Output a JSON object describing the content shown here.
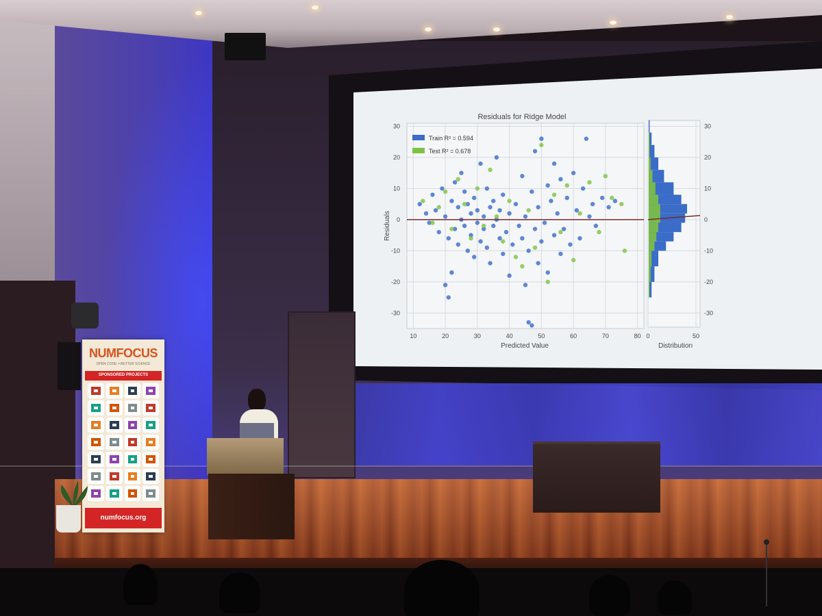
{
  "slide": {
    "title": "Residuals for Ridge Model",
    "legend": {
      "train_label": "Train R² = 0.594",
      "test_label": "Test R² = 0.678"
    },
    "xlabel": "Predicted Value",
    "ylabel": "Residuals",
    "hist_xlabel": "Distribution",
    "x_ticks": [
      "10",
      "20",
      "30",
      "40",
      "50",
      "60",
      "70",
      "80"
    ],
    "y_ticks": [
      "30",
      "20",
      "10",
      "0",
      "-10",
      "-20",
      "-30"
    ],
    "hist_x_ticks": [
      "0",
      "50"
    ],
    "colors": {
      "train": "#3a6cc8",
      "test": "#7fc241",
      "zero_line": "#7a2a2a"
    }
  },
  "chart_data": {
    "type": "scatter",
    "title": "Residuals for Ridge Model",
    "xlabel": "Predicted Value",
    "ylabel": "Residuals",
    "xlim": [
      8,
      82
    ],
    "ylim": [
      -35,
      31
    ],
    "grid": true,
    "legend_position": "top-left",
    "series": [
      {
        "name": "Train R² = 0.594",
        "color": "#3a6cc8",
        "points": [
          [
            12,
            5
          ],
          [
            14,
            2
          ],
          [
            15,
            -1
          ],
          [
            16,
            8
          ],
          [
            17,
            3
          ],
          [
            18,
            -4
          ],
          [
            19,
            10
          ],
          [
            20,
            1
          ],
          [
            21,
            -6
          ],
          [
            22,
            6
          ],
          [
            22,
            -17
          ],
          [
            23,
            12
          ],
          [
            23,
            -3
          ],
          [
            24,
            4
          ],
          [
            24,
            -8
          ],
          [
            25,
            15
          ],
          [
            25,
            0
          ],
          [
            26,
            -2
          ],
          [
            26,
            9
          ],
          [
            27,
            -10
          ],
          [
            27,
            5
          ],
          [
            28,
            2
          ],
          [
            28,
            -5
          ],
          [
            29,
            7
          ],
          [
            29,
            -12
          ],
          [
            30,
            -1
          ],
          [
            30,
            3
          ],
          [
            31,
            18
          ],
          [
            31,
            -7
          ],
          [
            32,
            1
          ],
          [
            32,
            -3
          ],
          [
            33,
            10
          ],
          [
            33,
            -9
          ],
          [
            34,
            4
          ],
          [
            34,
            -14
          ],
          [
            35,
            -2
          ],
          [
            35,
            6
          ],
          [
            36,
            0
          ],
          [
            36,
            20
          ],
          [
            37,
            -6
          ],
          [
            37,
            3
          ],
          [
            38,
            -11
          ],
          [
            38,
            8
          ],
          [
            39,
            -4
          ],
          [
            40,
            2
          ],
          [
            40,
            -18
          ],
          [
            41,
            -8
          ],
          [
            42,
            5
          ],
          [
            43,
            -2
          ],
          [
            44,
            14
          ],
          [
            44,
            -6
          ],
          [
            45,
            -21
          ],
          [
            45,
            1
          ],
          [
            46,
            -10
          ],
          [
            47,
            9
          ],
          [
            48,
            -3
          ],
          [
            48,
            22
          ],
          [
            49,
            -14
          ],
          [
            49,
            4
          ],
          [
            50,
            26
          ],
          [
            50,
            -7
          ],
          [
            51,
            -1
          ],
          [
            52,
            11
          ],
          [
            52,
            -17
          ],
          [
            53,
            6
          ],
          [
            54,
            -5
          ],
          [
            54,
            18
          ],
          [
            55,
            2
          ],
          [
            56,
            -11
          ],
          [
            56,
            13
          ],
          [
            57,
            -3
          ],
          [
            58,
            7
          ],
          [
            59,
            -8
          ],
          [
            60,
            15
          ],
          [
            61,
            3
          ],
          [
            62,
            -6
          ],
          [
            63,
            10
          ],
          [
            64,
            26
          ],
          [
            65,
            1
          ],
          [
            66,
            5
          ],
          [
            67,
            -2
          ],
          [
            69,
            7
          ],
          [
            71,
            4
          ],
          [
            73,
            6
          ],
          [
            46,
            -33
          ],
          [
            47,
            -34
          ],
          [
            21,
            -25
          ],
          [
            20,
            -21
          ]
        ]
      },
      {
        "name": "Test R² = 0.678",
        "color": "#7fc241",
        "points": [
          [
            13,
            6
          ],
          [
            16,
            -1
          ],
          [
            18,
            4
          ],
          [
            20,
            9
          ],
          [
            22,
            -3
          ],
          [
            24,
            13
          ],
          [
            26,
            5
          ],
          [
            28,
            -6
          ],
          [
            30,
            10
          ],
          [
            32,
            -2
          ],
          [
            34,
            16
          ],
          [
            36,
            1
          ],
          [
            38,
            -7
          ],
          [
            40,
            6
          ],
          [
            42,
            -12
          ],
          [
            44,
            -15
          ],
          [
            46,
            3
          ],
          [
            48,
            -9
          ],
          [
            50,
            24
          ],
          [
            52,
            -20
          ],
          [
            54,
            8
          ],
          [
            56,
            -4
          ],
          [
            58,
            11
          ],
          [
            60,
            -13
          ],
          [
            62,
            2
          ],
          [
            65,
            12
          ],
          [
            68,
            -4
          ],
          [
            70,
            14
          ],
          [
            72,
            7
          ],
          [
            75,
            5
          ],
          [
            76,
            -10
          ]
        ]
      }
    ],
    "histogram": {
      "xlabel": "Distribution",
      "xlim": [
        0,
        50
      ],
      "bins_y": [
        -25,
        -20,
        -15,
        -10,
        -7,
        -4,
        -1,
        2,
        5,
        8,
        12,
        16,
        20,
        24,
        28
      ],
      "train_counts": [
        3,
        6,
        10,
        18,
        26,
        34,
        38,
        40,
        34,
        26,
        16,
        10,
        6,
        3,
        1
      ],
      "test_counts": [
        1,
        2,
        3,
        6,
        8,
        10,
        12,
        12,
        10,
        7,
        4,
        2,
        1,
        1,
        0
      ]
    }
  }
}
